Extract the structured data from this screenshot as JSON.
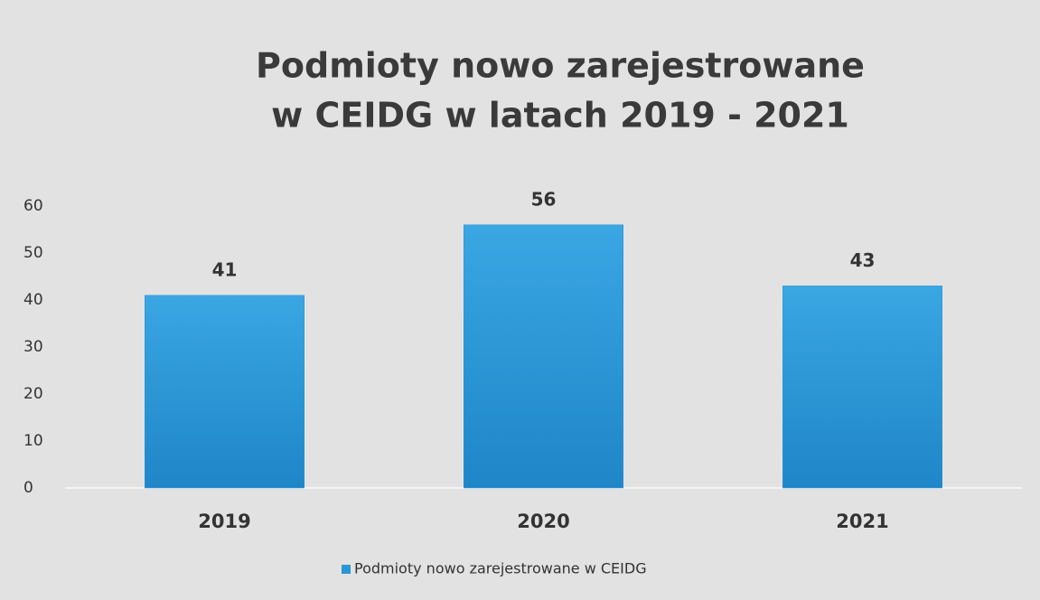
{
  "chart_data": {
    "type": "bar",
    "title": [
      "Podmioty nowo zarejestrowane",
      "w CEIDG w latach 2019 - 2021"
    ],
    "categories": [
      "2019",
      "2020",
      "2021"
    ],
    "series": [
      {
        "name": "Podmioty nowo zarejestrowane w CEIDG",
        "color": "#2a96d6",
        "values": [
          41,
          56,
          43
        ]
      }
    ],
    "ylim": [
      0,
      60
    ],
    "yticks": [
      0,
      10,
      20,
      30,
      40,
      50,
      60
    ],
    "grid": false,
    "legend": "bottom"
  }
}
